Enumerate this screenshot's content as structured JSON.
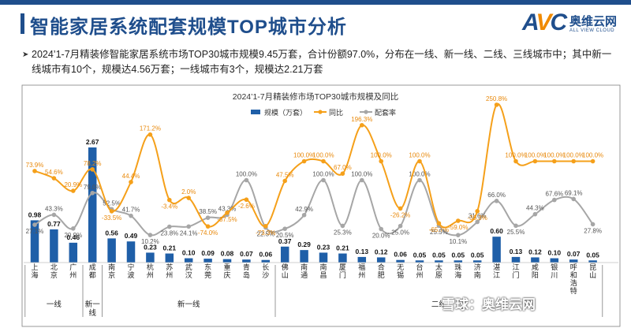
{
  "header": {
    "title": "智能家居系统配套规模TOP城市分析"
  },
  "logo": {
    "mark_a": "A",
    "mark_v": "V",
    "mark_c": "C",
    "cn": "奥维云网",
    "en": "ALL VIEW CLOUD"
  },
  "summary": {
    "bullet": "➤",
    "text": "2024’1-7月精装修智能家居系统市场TOP30城市规模9.45万套，合计份额97.0%，分布在一线、新一线、二线、三线城市中；其中新一线城市有10个，规模达4.56万套；一线城市有3个，规模达2.21万套"
  },
  "watermark": {
    "text": "雪球：奥维云网"
  },
  "chart_data": {
    "type": "bar",
    "title": "2024’1-7月精装修市场TOP30城市规模及同比",
    "legend": [
      {
        "name": "规模（万套）",
        "kind": "bar",
        "color": "#1f5fa8"
      },
      {
        "name": "同比",
        "kind": "line",
        "color": "#f5a01a"
      },
      {
        "name": "配套率",
        "kind": "line",
        "color": "#a6a6a6"
      }
    ],
    "legend_position": "top-center",
    "categories": [
      "上海",
      "北京",
      "广州",
      "成都",
      "南京",
      "宁波",
      "杭州",
      "苏州",
      "武汉",
      "东莞",
      "重庆",
      "青岛",
      "长沙",
      "佛山",
      "南通",
      "南昌",
      "厦门",
      "福州",
      "合肥",
      "无锡",
      "台州",
      "太原",
      "珠海",
      "济南",
      "湛江",
      "江门",
      "咸阳",
      "银川",
      "呼和浩特",
      "昆山"
    ],
    "series": [
      {
        "name": "规模（万套）",
        "kind": "bar",
        "color": "#1f5fa8",
        "values": [
          0.98,
          0.77,
          0.46,
          2.67,
          0.56,
          0.49,
          0.23,
          0.21,
          0.1,
          0.09,
          0.08,
          0.07,
          0.06,
          0.37,
          0.29,
          0.23,
          0.21,
          0.13,
          0.12,
          0.06,
          0.05,
          0.05,
          0.05,
          0.05,
          0.6,
          0.13,
          0.12,
          0.1,
          0.07,
          0.05
        ],
        "labels": [
          "0.98",
          "0.77",
          "0.46",
          "2.67",
          "0.56",
          "0.49",
          "0.23",
          "0.21",
          "0.10",
          "0.09",
          "0.08",
          "0.07",
          "0.06",
          "0.37",
          "0.29",
          "0.23",
          "0.21",
          "0.13",
          "0.12",
          "0.06",
          "0.05",
          "0.05",
          "0.05",
          "0.05",
          "0.60",
          "0.13",
          "0.12",
          "0.10",
          "0.07",
          "0.05"
        ]
      },
      {
        "name": "同比",
        "kind": "line",
        "color": "#f5a01a",
        "values": [
          73.9,
          54.6,
          20.9,
          78.2,
          -33.5,
          44.4,
          171.2,
          -3.4,
          2.0,
          -74.0,
          -37.5,
          -2.6,
          -73.3,
          47.5,
          100.0,
          100.0,
          67.0,
          196.3,
          100.0,
          -26.2,
          100.0,
          -65.7,
          -59.0,
          -33.3,
          250.8,
          100.0,
          100.0,
          100.0,
          100.0,
          100.0
        ],
        "labels": [
          "73.9%",
          "54.6%",
          "20.9%",
          "78.2%",
          "-33.5%",
          "44.4%",
          "171.2%",
          "-3.4%",
          "2.0%",
          "-74.0%",
          "-37.5%",
          "-2.6%",
          "-73.3%",
          "47.5%",
          "100.0%",
          "100.0%",
          "67.0%",
          "196.3%",
          "100.0%",
          "-26.2%",
          "100.0%",
          "-65.7%",
          "-59.0%",
          "-33.3%",
          "250.8%",
          "100.0%",
          "100.0%",
          "100.0%",
          "100.0%",
          "100.0%"
        ]
      },
      {
        "name": "配套率",
        "kind": "line",
        "color": "#a6a6a6",
        "values": [
          27.1,
          43.3,
          20.9,
          79.0,
          52.5,
          41.7,
          10.2,
          23.8,
          24.1,
          38.5,
          43.3,
          100.0,
          22.5,
          20.5,
          42.9,
          100.0,
          25.3,
          100.0,
          20.0,
          25.0,
          100.0,
          25.5,
          10.1,
          31.6,
          66.0,
          25.5,
          44.3,
          67.6,
          69.1,
          27.8
        ],
        "labels": [
          "27.1%",
          "43.3%",
          "20.9%",
          "79.0%",
          "52.5%",
          "41.7%",
          "10.2%",
          "23.8%",
          "24.1%",
          "38.5%",
          "43.3%",
          "100.0%",
          "22.5%",
          "20.5%",
          "42.9%",
          "100.0%",
          "25.3%",
          "100.0%",
          "20.0%",
          "25.0%",
          "100.0%",
          "25.5%",
          "10.1%",
          "31.6%",
          "66.0%",
          "25.5%",
          "44.3%",
          "67.6%",
          "69.1%",
          "27.8%"
        ]
      }
    ],
    "groups": [
      {
        "label": "一线",
        "start": 0,
        "end": 2
      },
      {
        "label": "新一线",
        "start": 3,
        "end": 3
      },
      {
        "label": "新一线",
        "start": 4,
        "end": 12
      },
      {
        "label": "二线",
        "start": 13,
        "end": 29
      }
    ]
  }
}
